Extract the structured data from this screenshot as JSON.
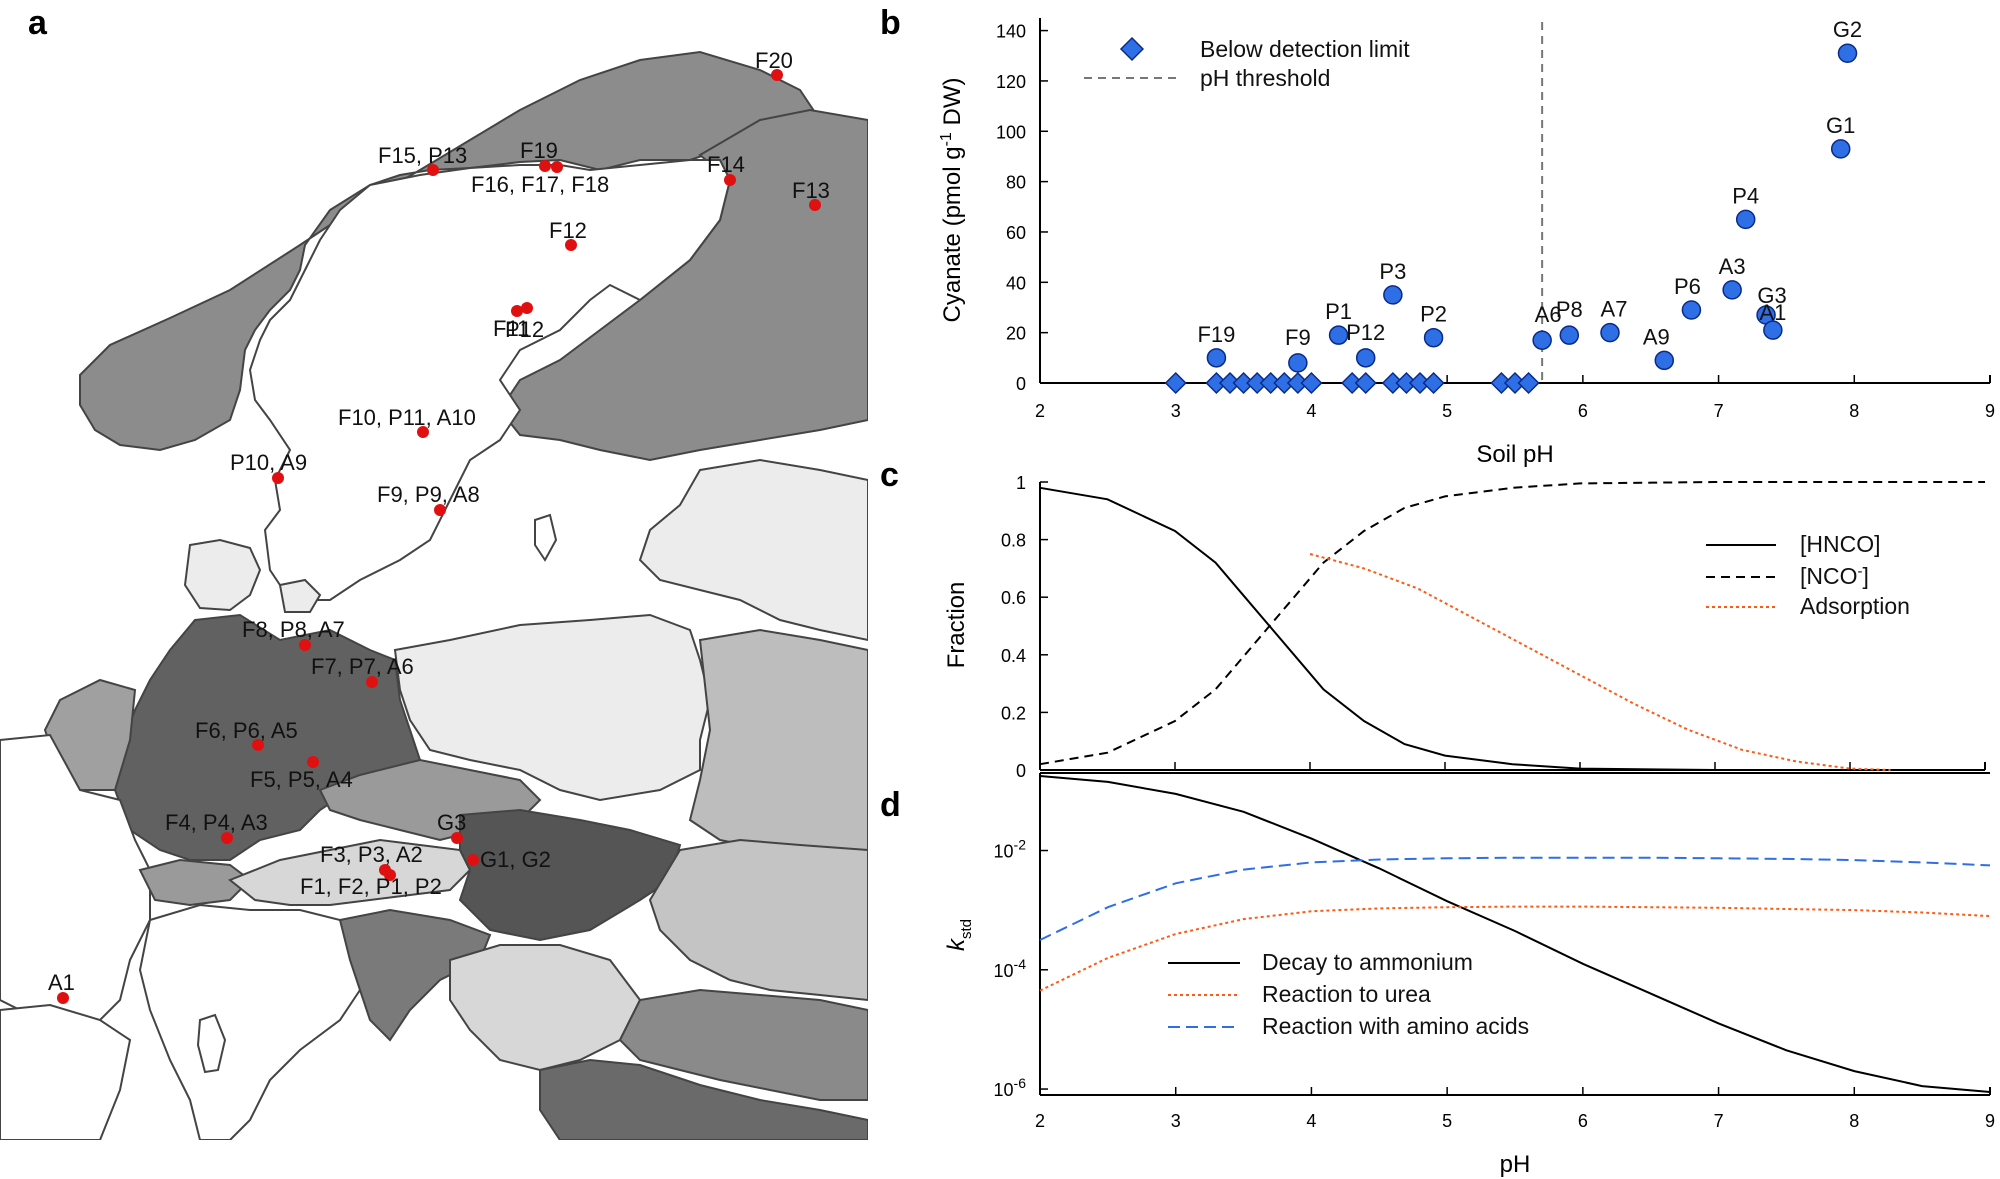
{
  "panel_labels": {
    "a": "a",
    "b": "b",
    "c": "c",
    "d": "d"
  },
  "colors": {
    "marker_fill": "#2f6fe6",
    "marker_stroke": "#0a2a8a",
    "site_dot": "#e01010",
    "adsorption": "#ff5a14",
    "amino": "#2f6fe6",
    "threshold": "#777777"
  },
  "map": {
    "sites": [
      {
        "label": "F20"
      },
      {
        "label": "F15, P13"
      },
      {
        "label": "F19"
      },
      {
        "label": "F16, F17, F18"
      },
      {
        "label": "F14"
      },
      {
        "label": "F13"
      },
      {
        "label": "F12"
      },
      {
        "label": "P12"
      },
      {
        "label": "F11"
      },
      {
        "label": "F10, P11, A10"
      },
      {
        "label": "P10, A9"
      },
      {
        "label": "F9, P9, A8"
      },
      {
        "label": "F8, P8, A7"
      },
      {
        "label": "F7, P7, A6"
      },
      {
        "label": "F6, P6, A5"
      },
      {
        "label": "F5, P5, A4"
      },
      {
        "label": "F4, P4, A3"
      },
      {
        "label": "G3"
      },
      {
        "label": "F3, P3, A2"
      },
      {
        "label": "G1, G2"
      },
      {
        "label": "F1, F2, P1, P2"
      },
      {
        "label": "A1"
      }
    ]
  },
  "chart_data": [
    {
      "id": "b",
      "type": "scatter",
      "xlabel": "Soil pH",
      "ylabel_parts": [
        "Cyanate (pmol g",
        "-1",
        " DW)"
      ],
      "xlim": [
        2,
        9
      ],
      "ylim": [
        0,
        145
      ],
      "xticks": [
        2,
        3,
        4,
        5,
        6,
        7,
        8,
        9
      ],
      "yticks": [
        0,
        20,
        40,
        60,
        80,
        100,
        120,
        140
      ],
      "threshold_x": 5.7,
      "legend": [
        {
          "name": "Below detection limit",
          "marker": "diamond"
        },
        {
          "name": "pH threshold",
          "marker": "dashed-line"
        }
      ],
      "points": [
        {
          "label": "G2",
          "x": 7.95,
          "y": 131
        },
        {
          "label": "G1",
          "x": 7.9,
          "y": 93
        },
        {
          "label": "P4",
          "x": 7.2,
          "y": 65
        },
        {
          "label": "A3",
          "x": 7.1,
          "y": 37
        },
        {
          "label": "G3",
          "x": 7.35,
          "y": 27
        },
        {
          "label": "A1",
          "x": 7.4,
          "y": 21
        },
        {
          "label": "P6",
          "x": 6.8,
          "y": 29
        },
        {
          "label": "A9",
          "x": 6.6,
          "y": 9
        },
        {
          "label": "A7",
          "x": 6.2,
          "y": 20
        },
        {
          "label": "P8",
          "x": 5.9,
          "y": 19
        },
        {
          "label": "A6",
          "x": 5.7,
          "y": 17
        },
        {
          "label": "P3",
          "x": 4.6,
          "y": 35
        },
        {
          "label": "P2",
          "x": 4.9,
          "y": 18
        },
        {
          "label": "P1",
          "x": 4.2,
          "y": 19
        },
        {
          "label": "P12",
          "x": 4.4,
          "y": 10
        },
        {
          "label": "F9",
          "x": 3.9,
          "y": 8
        },
        {
          "label": "F19",
          "x": 3.3,
          "y": 10
        }
      ],
      "below_detection_x": [
        3.0,
        3.3,
        3.4,
        3.5,
        3.6,
        3.7,
        3.8,
        3.9,
        4.0,
        4.3,
        4.4,
        4.6,
        4.7,
        4.8,
        4.9,
        5.4,
        5.5,
        5.6
      ]
    },
    {
      "id": "c",
      "type": "line",
      "xlabel": "",
      "ylabel": "Fraction",
      "xlim": [
        2,
        9
      ],
      "ylim": [
        0,
        1
      ],
      "xticks": [
        2,
        3,
        4,
        5,
        6,
        7,
        8,
        9
      ],
      "yticks": [
        0,
        0.2,
        0.4,
        0.6,
        0.8,
        1
      ],
      "ytick_labels": [
        "0",
        "0.2",
        "0.4",
        "0.6",
        "0.8",
        "1"
      ],
      "pKa": 3.7,
      "series": [
        {
          "name": "[HNCO]",
          "style": "solid",
          "x": [
            2.0,
            2.5,
            3.0,
            3.3,
            3.5,
            3.7,
            3.9,
            4.1,
            4.4,
            4.7,
            5.0,
            5.5,
            6.0,
            7.0,
            8.0,
            9.0
          ],
          "y": [
            0.98,
            0.94,
            0.83,
            0.72,
            0.61,
            0.5,
            0.39,
            0.28,
            0.17,
            0.09,
            0.05,
            0.02,
            0.005,
            0.0,
            0.0,
            0.0
          ]
        },
        {
          "name": "[NCO-]",
          "legend_main": "[NCO",
          "legend_sup": "-",
          "legend_tail": "]",
          "style": "dashed",
          "x": [
            2.0,
            2.5,
            3.0,
            3.3,
            3.5,
            3.7,
            3.9,
            4.1,
            4.4,
            4.7,
            5.0,
            5.5,
            6.0,
            7.0,
            8.0,
            9.0
          ],
          "y": [
            0.02,
            0.06,
            0.17,
            0.28,
            0.39,
            0.5,
            0.61,
            0.72,
            0.83,
            0.91,
            0.95,
            0.98,
            0.995,
            1.0,
            1.0,
            1.0
          ]
        },
        {
          "name": "Adsorption",
          "style": "dotted",
          "x": [
            4.0,
            4.4,
            4.8,
            5.2,
            5.6,
            6.0,
            6.4,
            6.8,
            7.2,
            7.6,
            8.0,
            8.3
          ],
          "y": [
            0.75,
            0.7,
            0.63,
            0.53,
            0.43,
            0.33,
            0.23,
            0.14,
            0.07,
            0.03,
            0.005,
            0.0
          ]
        }
      ]
    },
    {
      "id": "d",
      "type": "line",
      "xlabel": "pH",
      "ylabel_main": "k",
      "ylabel_sub": "std",
      "xlim": [
        2,
        9
      ],
      "ylim_log10": [
        -6.1,
        -0.7
      ],
      "xticks": [
        2,
        3,
        4,
        5,
        6,
        7,
        8,
        9
      ],
      "yticks_exp": [
        -2,
        -4,
        -6
      ],
      "ytick_base": "10",
      "series": [
        {
          "name": "Decay to ammonium",
          "style": "solid",
          "x": [
            2.0,
            2.5,
            3.0,
            3.5,
            4.0,
            4.5,
            5.0,
            5.5,
            6.0,
            6.5,
            7.0,
            7.5,
            8.0,
            8.5,
            9.0
          ],
          "y": [
            -0.75,
            -0.85,
            -1.05,
            -1.35,
            -1.8,
            -2.3,
            -2.85,
            -3.35,
            -3.9,
            -4.4,
            -4.9,
            -5.35,
            -5.7,
            -5.95,
            -6.05
          ]
        },
        {
          "name": "Reaction to urea",
          "style": "dotted",
          "x": [
            2.0,
            2.5,
            3.0,
            3.5,
            4.0,
            4.5,
            5.0,
            5.5,
            6.0,
            6.5,
            7.0,
            7.5,
            8.0,
            8.5,
            9.0
          ],
          "y": [
            -4.35,
            -3.8,
            -3.4,
            -3.15,
            -3.02,
            -2.97,
            -2.95,
            -2.94,
            -2.94,
            -2.95,
            -2.96,
            -2.98,
            -3.0,
            -3.04,
            -3.1
          ]
        },
        {
          "name": "Reaction with amino acids",
          "style": "dashed",
          "x": [
            2.0,
            2.5,
            3.0,
            3.5,
            4.0,
            4.5,
            5.0,
            5.5,
            6.0,
            6.5,
            7.0,
            7.5,
            8.0,
            8.5,
            9.0
          ],
          "y": [
            -3.5,
            -2.95,
            -2.55,
            -2.32,
            -2.2,
            -2.15,
            -2.13,
            -2.12,
            -2.12,
            -2.12,
            -2.13,
            -2.14,
            -2.16,
            -2.2,
            -2.25
          ]
        }
      ]
    }
  ]
}
